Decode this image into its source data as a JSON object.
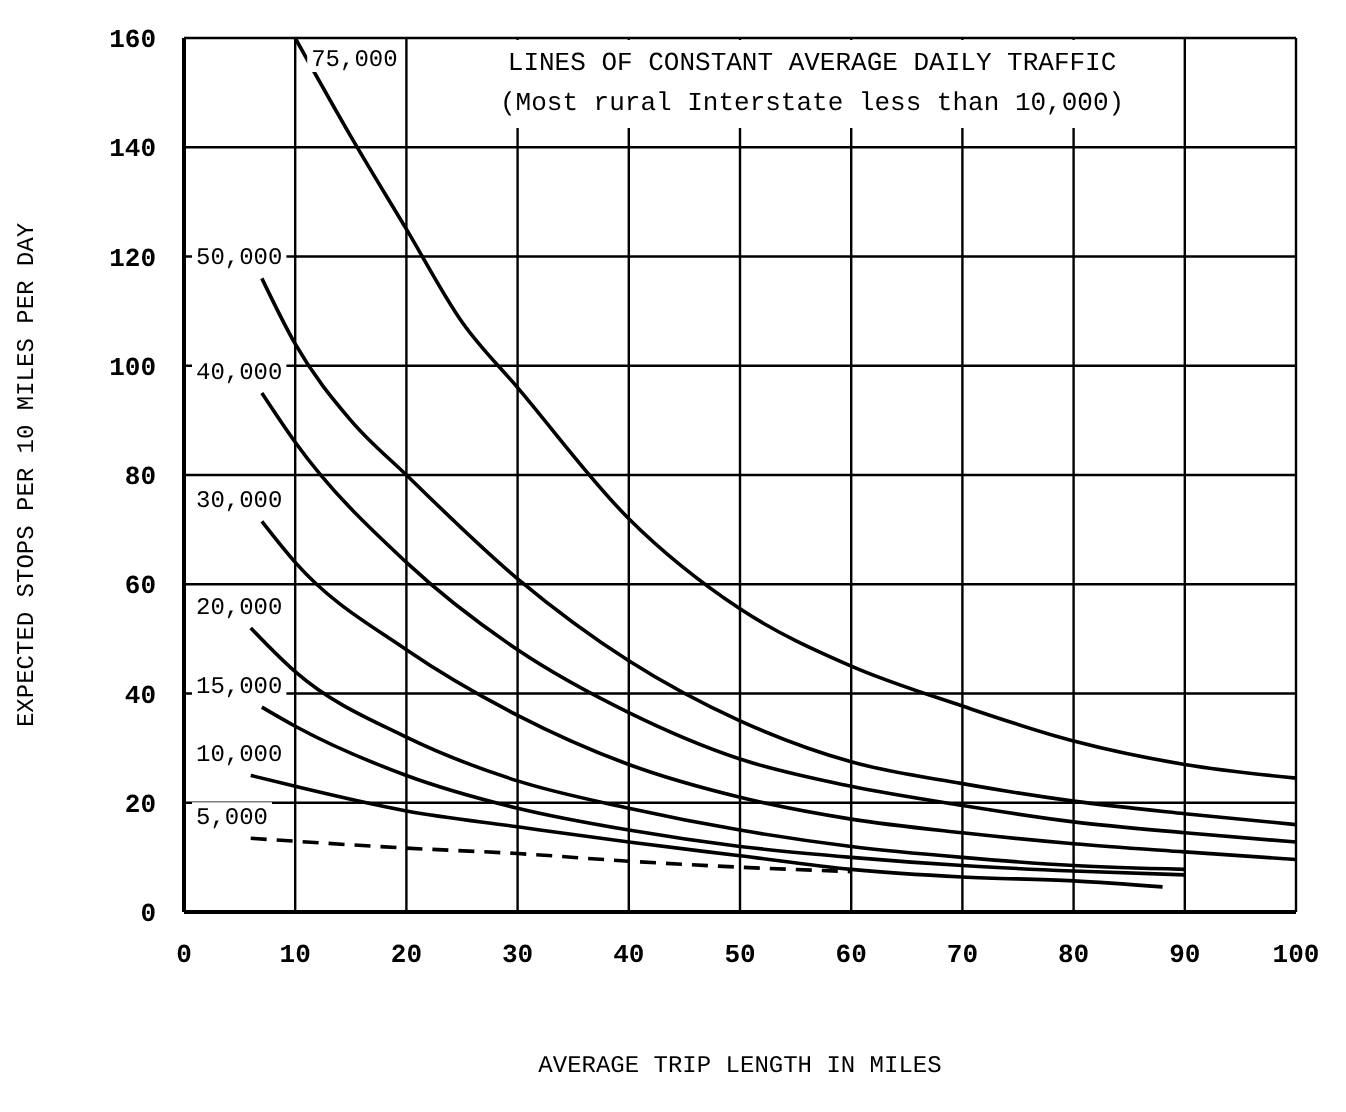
{
  "chart_data": {
    "type": "line",
    "xlabel": "AVERAGE TRIP LENGTH IN MILES",
    "ylabel": "EXPECTED STOPS PER 10 MILES PER DAY",
    "annotations": [
      "LINES OF CONSTANT AVERAGE DAILY TRAFFIC",
      "(Most rural Interstate less than 10,000)"
    ],
    "series": [
      {
        "name": "75,000",
        "color": "#000000",
        "x": [
          10,
          15,
          20,
          25,
          30,
          40,
          50,
          60,
          70,
          80,
          90,
          100
        ],
        "values": [
          160,
          142,
          125,
          108,
          96,
          72,
          55.5,
          45,
          37.7,
          31.3,
          27,
          24.5
        ]
      },
      {
        "name": "50,000",
        "color": "#000000",
        "x": [
          7,
          10,
          15,
          20,
          30,
          40,
          50,
          60,
          70,
          80,
          90,
          100
        ],
        "values": [
          116,
          104,
          90,
          80,
          61,
          46,
          35,
          27.5,
          23.5,
          20.3,
          18,
          16
        ]
      },
      {
        "name": "40,000",
        "color": "#000000",
        "x": [
          7,
          10,
          20,
          30,
          40,
          50,
          60,
          70,
          80,
          90,
          100
        ],
        "values": [
          95,
          86,
          64,
          48,
          36.5,
          28,
          23,
          19.5,
          16.5,
          14.5,
          12.8
        ]
      },
      {
        "name": "30,000",
        "color": "#000000",
        "x": [
          7,
          10,
          20,
          30,
          40,
          50,
          60,
          70,
          80,
          90,
          100
        ],
        "values": [
          71.5,
          64,
          48,
          36,
          27,
          21,
          17,
          14.5,
          12.5,
          11,
          9.6
        ]
      },
      {
        "name": "20,000",
        "color": "#000000",
        "x": [
          6,
          10,
          20,
          30,
          40,
          50,
          60,
          70,
          80,
          90
        ],
        "values": [
          52,
          44,
          32,
          24,
          19,
          15,
          12,
          10,
          8.5,
          7.8
        ]
      },
      {
        "name": "15,000",
        "color": "#000000",
        "x": [
          7,
          10,
          20,
          30,
          40,
          50,
          60,
          70,
          80,
          90
        ],
        "values": [
          37.5,
          34,
          25,
          19,
          15,
          12,
          10,
          8.5,
          7.5,
          6.8
        ]
      },
      {
        "name": "10,000",
        "color": "#000000",
        "x": [
          6,
          10,
          20,
          30,
          40,
          50,
          60,
          70,
          80,
          88
        ],
        "values": [
          25,
          23,
          18.5,
          15.6,
          12.8,
          10.3,
          7.8,
          6.4,
          5.7,
          4.6
        ]
      },
      {
        "name": "5,000",
        "color": "#000000",
        "line_style": "dashed",
        "x": [
          6,
          20,
          30,
          40,
          50,
          60
        ],
        "values": [
          13.5,
          11.7,
          10.7,
          9.3,
          8.2,
          7.4
        ]
      }
    ],
    "xlim": [
      0,
      100
    ],
    "xticks": [
      0,
      10,
      20,
      30,
      40,
      50,
      60,
      70,
      80,
      90,
      100
    ],
    "ylim": [
      0,
      160
    ],
    "yticks": [
      0,
      20,
      40,
      60,
      80,
      100,
      120,
      140,
      160
    ],
    "grid": true,
    "legend": false,
    "marker": "none",
    "line_style": "solid"
  }
}
